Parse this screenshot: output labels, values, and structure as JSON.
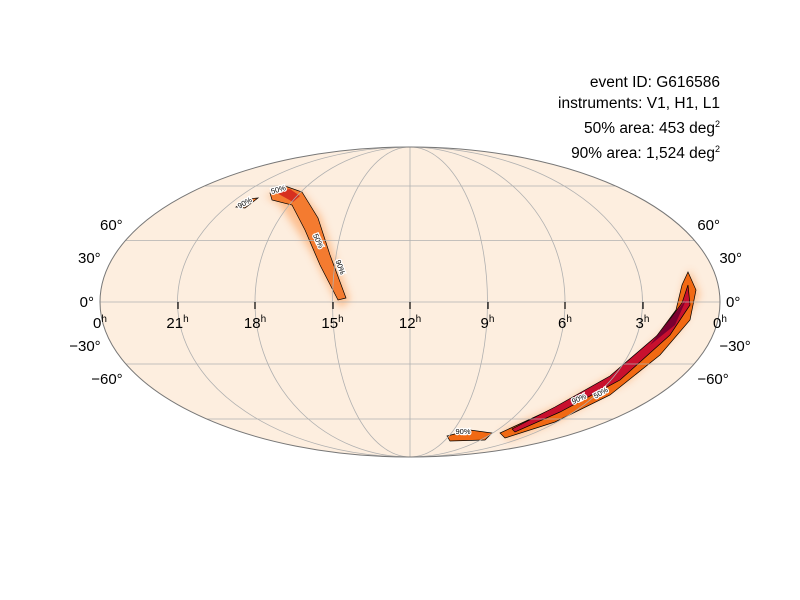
{
  "info": {
    "event_id": "event ID: G616586",
    "instruments": "instruments: V1, H1, L1",
    "area50_label": "50% area: 453 deg",
    "area90_label": "90% area: 1,524 deg",
    "unit_superscript": "2"
  },
  "chart_data": {
    "type": "heatmap",
    "projection": "mollweide",
    "title": "",
    "ra_tick_labels": [
      "0",
      "21",
      "18",
      "15",
      "12",
      "9",
      "6",
      "3",
      "0"
    ],
    "ra_unit": "h",
    "dec_tick_labels_left": [
      "60°",
      "30°",
      "0°",
      "−30°",
      "−60°"
    ],
    "dec_tick_labels_right": [
      "60°",
      "30°",
      "0°",
      "−30°",
      "−60°"
    ],
    "dec_values": [
      60,
      30,
      0,
      -30,
      -60
    ],
    "contour_levels": [
      "50%",
      "90%"
    ],
    "contour_labels": [
      "50%",
      "90%",
      "50%",
      "90%",
      "90%",
      "90%",
      "50%"
    ],
    "grid": true,
    "colormap": [
      "#fdeedd",
      "#fdae6b",
      "#f16913",
      "#d7301f",
      "#b30040"
    ]
  }
}
